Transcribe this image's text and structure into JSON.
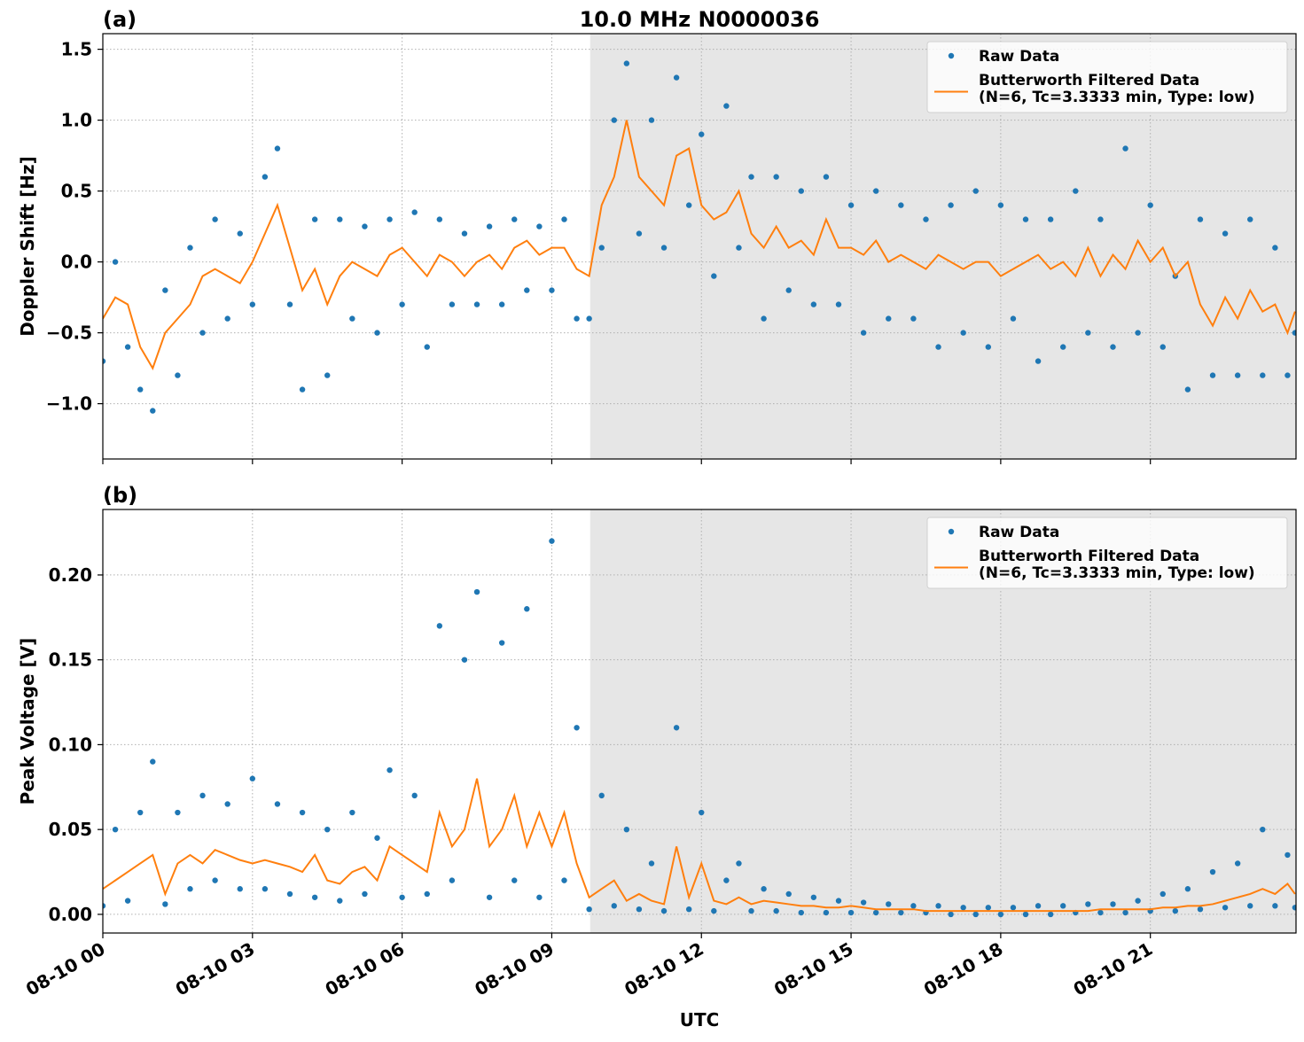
{
  "chart_data": [
    {
      "type": "timeseries",
      "panel_label": "(a)",
      "title": "10.0 MHz N0000036",
      "ylabel": "Doppler Shift [Hz]",
      "xlim": [
        0,
        23.92
      ],
      "xticks": [
        0,
        3,
        6,
        9,
        12,
        15,
        18,
        21
      ],
      "ylim": [
        -1.39,
        1.61
      ],
      "yticks": [
        {
          "value": -1.0,
          "label": "−1.0"
        },
        {
          "value": -0.5,
          "label": "−0.5"
        },
        {
          "value": 0,
          "label": "0.0"
        },
        0.5,
        {
          "value": 1.0,
          "label": "1.0"
        },
        1.5
      ],
      "grid": true,
      "legend": "upper right",
      "shaded_span": [
        9.77,
        23.92
      ],
      "shaded_color": "#e6e6e6",
      "x": [
        0,
        0.25,
        0.5,
        0.75,
        1,
        1.25,
        1.5,
        1.75,
        2,
        2.25,
        2.5,
        2.75,
        3,
        3.25,
        3.5,
        3.75,
        4,
        4.25,
        4.5,
        4.75,
        5,
        5.25,
        5.5,
        5.75,
        6,
        6.25,
        6.5,
        6.75,
        7,
        7.25,
        7.5,
        7.75,
        8,
        8.25,
        8.5,
        8.75,
        9,
        9.25,
        9.5,
        9.75,
        10,
        10.25,
        10.5,
        10.75,
        11,
        11.25,
        11.5,
        11.75,
        12,
        12.25,
        12.5,
        12.75,
        13,
        13.25,
        13.5,
        13.75,
        14,
        14.25,
        14.5,
        14.75,
        15,
        15.25,
        15.5,
        15.75,
        16,
        16.25,
        16.5,
        16.75,
        17,
        17.25,
        17.5,
        17.75,
        18,
        18.25,
        18.5,
        18.75,
        19,
        19.25,
        19.5,
        19.75,
        20,
        20.25,
        20.5,
        20.75,
        21,
        21.25,
        21.5,
        21.75,
        22,
        22.25,
        22.5,
        22.75,
        23,
        23.25,
        23.5,
        23.75,
        23.9
      ],
      "series": [
        {
          "name": "Raw Data",
          "color": "#1f77b4",
          "style": "dots",
          "values": [
            -0.7,
            0.0,
            -0.6,
            -0.9,
            -1.05,
            -0.2,
            -0.8,
            0.1,
            -0.5,
            0.3,
            -0.4,
            0.2,
            -0.3,
            0.6,
            0.8,
            -0.3,
            -0.9,
            0.3,
            -0.8,
            0.3,
            -0.4,
            0.25,
            -0.5,
            0.3,
            -0.3,
            0.35,
            -0.6,
            0.3,
            -0.3,
            0.2,
            -0.3,
            0.25,
            -0.3,
            0.3,
            -0.2,
            0.25,
            -0.2,
            0.3,
            -0.4,
            -0.4,
            0.1,
            1.0,
            1.4,
            0.2,
            1.0,
            0.1,
            1.3,
            0.4,
            0.9,
            -0.1,
            1.1,
            0.1,
            0.6,
            -0.4,
            0.6,
            -0.2,
            0.5,
            -0.3,
            0.6,
            -0.3,
            0.4,
            -0.5,
            0.5,
            -0.4,
            0.4,
            -0.4,
            0.3,
            -0.6,
            0.4,
            -0.5,
            0.5,
            -0.6,
            0.4,
            -0.4,
            0.3,
            -0.7,
            0.3,
            -0.6,
            0.5,
            -0.5,
            0.3,
            -0.6,
            0.8,
            -0.5,
            0.4,
            -0.6,
            -0.1,
            -0.9,
            0.3,
            -0.8,
            0.2,
            -0.8,
            0.3,
            -0.8,
            0.1,
            -0.8,
            -0.5
          ]
        },
        {
          "name": "Butterworth Filtered Data\n(N=6, Tc=3.3333 min, Type: low)",
          "color": "#ff7f0e",
          "style": "line",
          "values": [
            -0.4,
            -0.25,
            -0.3,
            -0.6,
            -0.75,
            -0.5,
            -0.4,
            -0.3,
            -0.1,
            -0.05,
            -0.1,
            -0.15,
            0.0,
            0.2,
            0.4,
            0.1,
            -0.2,
            -0.05,
            -0.3,
            -0.1,
            0.0,
            -0.05,
            -0.1,
            0.05,
            0.1,
            0.0,
            -0.1,
            0.05,
            0.0,
            -0.1,
            0.0,
            0.05,
            -0.05,
            0.1,
            0.15,
            0.05,
            0.1,
            0.1,
            -0.05,
            -0.1,
            0.4,
            0.6,
            1.0,
            0.6,
            0.5,
            0.4,
            0.75,
            0.8,
            0.4,
            0.3,
            0.35,
            0.5,
            0.2,
            0.1,
            0.25,
            0.1,
            0.15,
            0.05,
            0.3,
            0.1,
            0.1,
            0.05,
            0.15,
            0.0,
            0.05,
            0.0,
            -0.05,
            0.05,
            0.0,
            -0.05,
            0.0,
            0.0,
            -0.1,
            -0.05,
            0.0,
            0.05,
            -0.05,
            0.0,
            -0.1,
            0.1,
            -0.1,
            0.05,
            -0.05,
            0.15,
            0.0,
            0.1,
            -0.1,
            0.0,
            -0.3,
            -0.45,
            -0.25,
            -0.4,
            -0.2,
            -0.35,
            -0.3,
            -0.5,
            -0.35
          ]
        }
      ]
    },
    {
      "type": "timeseries",
      "panel_label": "(b)",
      "ylabel": "Peak Voltage [V]",
      "xlabel": "UTC",
      "xlim": [
        0,
        23.92
      ],
      "xticks": [
        {
          "value": 0,
          "label": "08-10 00"
        },
        {
          "value": 3,
          "label": "08-10 03"
        },
        {
          "value": 6,
          "label": "08-10 06"
        },
        {
          "value": 9,
          "label": "08-10 09"
        },
        {
          "value": 12,
          "label": "08-10 12"
        },
        {
          "value": 15,
          "label": "08-10 15"
        },
        {
          "value": 18,
          "label": "08-10 18"
        },
        {
          "value": 21,
          "label": "08-10 21"
        }
      ],
      "ylim": [
        -0.011,
        0.2386
      ],
      "yticks": [
        {
          "value": 0,
          "label": "0.00"
        },
        {
          "value": 0.05,
          "label": "0.05"
        },
        {
          "value": 0.1,
          "label": "0.10"
        },
        {
          "value": 0.15,
          "label": "0.15"
        },
        {
          "value": 0.2,
          "label": "0.20"
        }
      ],
      "grid": true,
      "legend": "upper right",
      "shaded_span": [
        9.77,
        23.92
      ],
      "shaded_color": "#e6e6e6",
      "x": [
        0,
        0.25,
        0.5,
        0.75,
        1,
        1.25,
        1.5,
        1.75,
        2,
        2.25,
        2.5,
        2.75,
        3,
        3.25,
        3.5,
        3.75,
        4,
        4.25,
        4.5,
        4.75,
        5,
        5.25,
        5.5,
        5.75,
        6,
        6.25,
        6.5,
        6.75,
        7,
        7.25,
        7.5,
        7.75,
        8,
        8.25,
        8.5,
        8.75,
        9,
        9.25,
        9.5,
        9.75,
        10,
        10.25,
        10.5,
        10.75,
        11,
        11.25,
        11.5,
        11.75,
        12,
        12.25,
        12.5,
        12.75,
        13,
        13.25,
        13.5,
        13.75,
        14,
        14.25,
        14.5,
        14.75,
        15,
        15.25,
        15.5,
        15.75,
        16,
        16.25,
        16.5,
        16.75,
        17,
        17.25,
        17.5,
        17.75,
        18,
        18.25,
        18.5,
        18.75,
        19,
        19.25,
        19.5,
        19.75,
        20,
        20.25,
        20.5,
        20.75,
        21,
        21.25,
        21.5,
        21.75,
        22,
        22.25,
        22.5,
        22.75,
        23,
        23.25,
        23.5,
        23.75,
        23.9
      ],
      "series": [
        {
          "name": "Raw Data",
          "color": "#1f77b4",
          "style": "dots",
          "values": [
            0.005,
            0.05,
            0.008,
            0.06,
            0.09,
            0.006,
            0.06,
            0.015,
            0.07,
            0.02,
            0.065,
            0.015,
            0.08,
            0.015,
            0.065,
            0.012,
            0.06,
            0.01,
            0.05,
            0.008,
            0.06,
            0.012,
            0.045,
            0.085,
            0.01,
            0.07,
            0.012,
            0.17,
            0.02,
            0.15,
            0.19,
            0.01,
            0.16,
            0.02,
            0.18,
            0.01,
            0.22,
            0.02,
            0.11,
            0.003,
            0.07,
            0.005,
            0.05,
            0.003,
            0.03,
            0.002,
            0.11,
            0.003,
            0.06,
            0.002,
            0.02,
            0.03,
            0.002,
            0.015,
            0.002,
            0.012,
            0.001,
            0.01,
            0.001,
            0.008,
            0.001,
            0.007,
            0.001,
            0.006,
            0.001,
            0.005,
            0.001,
            0.005,
            0.0,
            0.004,
            0.0,
            0.004,
            0.0,
            0.004,
            0.0,
            0.005,
            0.0,
            0.005,
            0.001,
            0.006,
            0.001,
            0.006,
            0.001,
            0.008,
            0.002,
            0.012,
            0.002,
            0.015,
            0.003,
            0.025,
            0.004,
            0.03,
            0.005,
            0.05,
            0.005,
            0.035,
            0.004
          ]
        },
        {
          "name": "Butterworth Filtered Data\n(N=6, Tc=3.3333 min, Type: low)",
          "color": "#ff7f0e",
          "style": "line",
          "values": [
            0.015,
            0.02,
            0.025,
            0.03,
            0.035,
            0.012,
            0.03,
            0.035,
            0.03,
            0.038,
            0.035,
            0.032,
            0.03,
            0.032,
            0.03,
            0.028,
            0.025,
            0.035,
            0.02,
            0.018,
            0.025,
            0.028,
            0.02,
            0.04,
            0.035,
            0.03,
            0.025,
            0.06,
            0.04,
            0.05,
            0.08,
            0.04,
            0.05,
            0.07,
            0.04,
            0.06,
            0.04,
            0.06,
            0.03,
            0.01,
            0.015,
            0.02,
            0.008,
            0.012,
            0.008,
            0.006,
            0.04,
            0.01,
            0.03,
            0.008,
            0.006,
            0.01,
            0.006,
            0.008,
            0.007,
            0.006,
            0.005,
            0.005,
            0.004,
            0.004,
            0.005,
            0.004,
            0.003,
            0.003,
            0.003,
            0.003,
            0.002,
            0.002,
            0.002,
            0.002,
            0.002,
            0.002,
            0.002,
            0.002,
            0.002,
            0.002,
            0.002,
            0.002,
            0.002,
            0.002,
            0.003,
            0.003,
            0.003,
            0.003,
            0.003,
            0.004,
            0.004,
            0.005,
            0.005,
            0.006,
            0.008,
            0.01,
            0.012,
            0.015,
            0.012,
            0.018,
            0.012
          ]
        }
      ]
    }
  ]
}
